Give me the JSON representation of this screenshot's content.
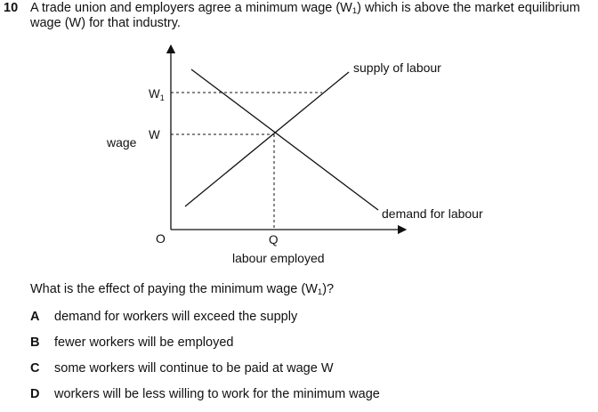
{
  "question": {
    "number": "10",
    "line1_a": "A trade union and employers agree a minimum wage (W",
    "line1_sub": "1",
    "line1_b": ") which is above the market equilibrium",
    "line2": "wage (W) for that industry."
  },
  "diagram": {
    "y_axis_label": "wage",
    "x_axis_label": "labour employed",
    "origin_label": "O",
    "w1_label": "W",
    "w1_sub": "1",
    "w_label": "W",
    "q_label": "Q",
    "supply_label": "supply of labour",
    "demand_label": "demand for labour"
  },
  "prompt": {
    "text_a": "What is the effect of paying the minimum wage (W",
    "text_sub": "1",
    "text_b": ")?"
  },
  "options": [
    {
      "letter": "A",
      "text": "demand for workers will exceed the supply"
    },
    {
      "letter": "B",
      "text": "fewer workers will be employed"
    },
    {
      "letter": "C",
      "text": "some workers will continue to be paid at wage W"
    },
    {
      "letter": "D",
      "text": "workers will be less willing to work for the minimum wage"
    }
  ]
}
